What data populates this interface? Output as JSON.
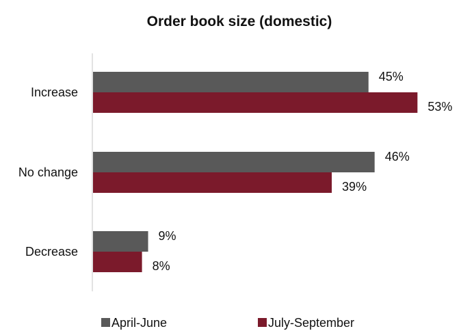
{
  "chart_data": {
    "type": "bar",
    "orientation": "horizontal",
    "title": "Order book size (domestic)",
    "categories": [
      "Increase",
      "No change",
      "Decrease"
    ],
    "series": [
      {
        "name": "April-June",
        "values": [
          45,
          46,
          9
        ],
        "labels": [
          "45%",
          "46%",
          "9%"
        ],
        "color": "#595959"
      },
      {
        "name": "July-September",
        "values": [
          53,
          39,
          8
        ],
        "labels": [
          "53%",
          "39%",
          "8%"
        ],
        "color": "#7b1a2b"
      }
    ],
    "xlim": [
      0,
      55
    ],
    "value_unit": "%",
    "grid": false,
    "legend_position": "bottom"
  }
}
